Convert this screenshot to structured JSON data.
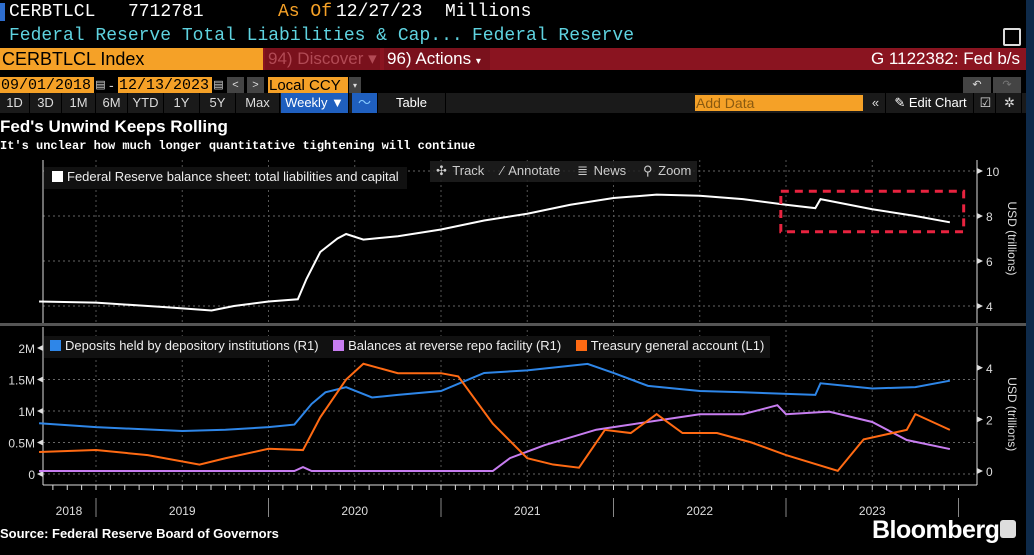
{
  "header": {
    "ticker": "CERBTLCL",
    "value": "7712781",
    "as_of_label": "As Of",
    "as_of_date": "12/27/23",
    "units": "Millions",
    "description": "Federal Reserve Total Liabilities & Cap...",
    "source_name": "Federal Reserve"
  },
  "command_bar": {
    "security": "CERBTLCL Index",
    "discover": "94) Discover",
    "actions": "96) Actions",
    "graph_id": "G 1122382: Fed b/s"
  },
  "range": {
    "start": "09/01/2018",
    "end": "12/13/2023",
    "currency": "Local CCY"
  },
  "toolbar": {
    "periods": [
      "1D",
      "3D",
      "1M",
      "6M",
      "YTD",
      "1Y",
      "5Y",
      "Max"
    ],
    "frequency": "Weekly ▼",
    "table": "Table",
    "add_data_placeholder": "Add Data",
    "edit_chart": "Edit Chart"
  },
  "chart_tools": {
    "track": "Track",
    "annotate": "Annotate",
    "news": "News",
    "zoom": "Zoom"
  },
  "footer": {
    "source": "Source: Federal Reserve Board of Governors",
    "brand": "Bloomberg"
  },
  "colors": {
    "orange": "#f5a127",
    "red_bar": "#8a1420",
    "blue": "#2e86e8",
    "purple": "#c77df0",
    "tga": "#ff6a13",
    "annotation": "#e8233f"
  },
  "chart_data": [
    {
      "type": "line",
      "title": "Fed's Unwind Keeps Rolling",
      "subtitle": "It's unclear how much longer quantitative tightening will continue",
      "ylabel": "USD (trillions)",
      "ylim": [
        3.5,
        10.5
      ],
      "yticks": [
        "4",
        "6",
        "8",
        "10"
      ],
      "grid": true,
      "legend": "top-left",
      "series": [
        {
          "name": "Federal Reserve balance sheet: total liabilities and capital",
          "color": "#ffffff",
          "x": [
            2018.67,
            2019.0,
            2019.4,
            2019.67,
            2019.8,
            2020.0,
            2020.17,
            2020.22,
            2020.3,
            2020.4,
            2020.45,
            2020.55,
            2020.75,
            2021.0,
            2021.25,
            2021.5,
            2021.75,
            2022.0,
            2022.25,
            2022.5,
            2022.75,
            2023.0,
            2023.17,
            2023.2,
            2023.5,
            2023.75,
            2023.95
          ],
          "y": [
            4.2,
            4.15,
            3.95,
            3.8,
            4.0,
            4.2,
            4.3,
            5.2,
            6.4,
            7.0,
            7.2,
            6.95,
            7.1,
            7.4,
            7.8,
            8.1,
            8.5,
            8.8,
            8.95,
            8.9,
            8.75,
            8.5,
            8.35,
            8.75,
            8.3,
            8.0,
            7.72
          ]
        }
      ],
      "annotation": {
        "type": "dashed-box",
        "x": [
          2022.97,
          2024.03
        ],
        "y": [
          7.3,
          9.1
        ]
      }
    },
    {
      "type": "line",
      "xlabel": "",
      "ylabel": "USD (trillions)",
      "ylim_left": [
        -0.1,
        2.1
      ],
      "ylim_right": [
        -0.25,
        5.2
      ],
      "yticks_left": [
        "0",
        "0.5M",
        "1M",
        "1.5M",
        "2M"
      ],
      "yticks_right": [
        "0",
        "2",
        "4"
      ],
      "xticks": [
        "2018",
        "2019",
        "2020",
        "2021",
        "2022",
        "2023"
      ],
      "grid": true,
      "legend": "top-left",
      "series": [
        {
          "name": "Deposits held by depository institutions (R1)",
          "color": "#2e86e8",
          "axis": "right",
          "x": [
            2018.67,
            2019.0,
            2019.5,
            2019.75,
            2020.0,
            2020.15,
            2020.25,
            2020.33,
            2020.45,
            2020.6,
            2020.75,
            2021.0,
            2021.25,
            2021.5,
            2021.85,
            2022.0,
            2022.2,
            2022.5,
            2022.75,
            2023.17,
            2023.2,
            2023.5,
            2023.75,
            2023.95
          ],
          "y": [
            1.85,
            1.7,
            1.55,
            1.6,
            1.7,
            1.8,
            2.6,
            3.05,
            3.25,
            2.85,
            2.95,
            3.1,
            3.8,
            3.9,
            4.15,
            3.8,
            3.3,
            3.1,
            3.05,
            2.95,
            3.4,
            3.2,
            3.25,
            3.5
          ]
        },
        {
          "name": "Balances at reverse repo facility (R1)",
          "color": "#c77df0",
          "axis": "right",
          "x": [
            2018.67,
            2020.15,
            2020.2,
            2020.25,
            2021.3,
            2021.4,
            2021.6,
            2021.9,
            2022.0,
            2022.3,
            2022.5,
            2022.75,
            2022.95,
            2023.0,
            2023.25,
            2023.5,
            2023.7,
            2023.95
          ],
          "y": [
            0.0,
            0.0,
            0.15,
            0.0,
            0.0,
            0.5,
            1.0,
            1.6,
            1.7,
            2.0,
            2.2,
            2.2,
            2.55,
            2.2,
            2.3,
            1.9,
            1.2,
            0.85
          ]
        },
        {
          "name": "Treasury general account  (L1)",
          "color": "#ff6a13",
          "axis": "left",
          "x": [
            2018.67,
            2019.0,
            2019.3,
            2019.6,
            2019.75,
            2020.0,
            2020.2,
            2020.3,
            2020.45,
            2020.55,
            2020.75,
            2021.0,
            2021.1,
            2021.3,
            2021.5,
            2021.65,
            2021.8,
            2021.95,
            2022.1,
            2022.25,
            2022.4,
            2022.6,
            2022.8,
            2023.0,
            2023.3,
            2023.45,
            2023.7,
            2023.75,
            2023.95
          ],
          "y": [
            0.35,
            0.38,
            0.3,
            0.15,
            0.25,
            0.4,
            0.38,
            0.9,
            1.5,
            1.75,
            1.6,
            1.6,
            1.55,
            0.8,
            0.25,
            0.15,
            0.1,
            0.7,
            0.65,
            0.95,
            0.65,
            0.65,
            0.5,
            0.3,
            0.05,
            0.55,
            0.7,
            0.95,
            0.7
          ]
        }
      ]
    }
  ]
}
